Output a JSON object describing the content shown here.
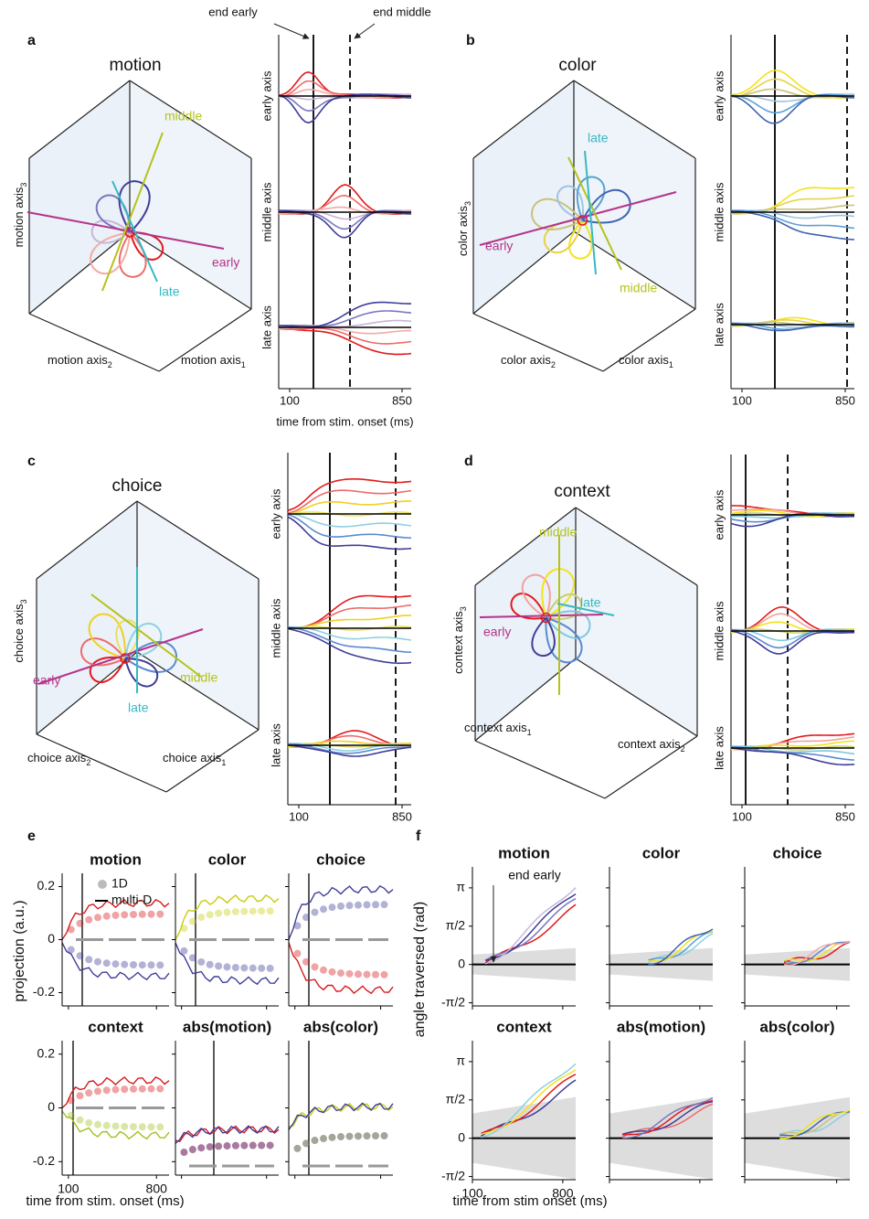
{
  "annotations": {
    "end_early": "end early",
    "end_middle": "end middle"
  },
  "panels": [
    {
      "letter": "a",
      "title": "motion",
      "axis_labels": [
        {
          "text": "motion axis",
          "sub": "2"
        },
        {
          "text": "motion axis",
          "sub": "1"
        },
        {
          "text": "motion axis",
          "sub": "3"
        }
      ],
      "traj_labels": {
        "early": "early",
        "middle": "middle",
        "late": "late"
      },
      "row_labels": [
        "early axis",
        "middle axis",
        "late axis"
      ],
      "xticks": [
        100,
        850
      ],
      "xlabel": "time from stim. onset (ms)"
    },
    {
      "letter": "b",
      "title": "color",
      "axis_labels": [
        {
          "text": "color axis",
          "sub": "2"
        },
        {
          "text": "color axis",
          "sub": "1"
        },
        {
          "text": "color axis",
          "sub": "3"
        }
      ],
      "traj_labels": {
        "early": "early",
        "middle": "middle",
        "late": "late"
      },
      "row_labels": [
        "early axis",
        "middle axis",
        "late axis"
      ],
      "xticks": [
        100,
        850
      ]
    },
    {
      "letter": "c",
      "title": "choice",
      "axis_labels": [
        {
          "text": "choice axis",
          "sub": "2"
        },
        {
          "text": "choice axis",
          "sub": "1"
        },
        {
          "text": "choice axis",
          "sub": "3"
        }
      ],
      "traj_labels": {
        "early": "early",
        "middle": "middle",
        "late": "late"
      },
      "row_labels": [
        "early axis",
        "middle axis",
        "late axis"
      ],
      "xticks": [
        100,
        850
      ]
    },
    {
      "letter": "d",
      "title": "context",
      "axis_labels": [
        {
          "text": "context axis",
          "sub": "1"
        },
        {
          "text": "context axis",
          "sub": "2"
        },
        {
          "text": "context axis",
          "sub": "3"
        }
      ],
      "traj_labels": {
        "early": "early",
        "middle": "middle",
        "late": "late"
      },
      "row_labels": [
        "early axis",
        "middle axis",
        "late axis"
      ],
      "xticks": [
        100,
        850
      ]
    }
  ],
  "panel_e": {
    "letter": "e",
    "titles": [
      "motion",
      "color",
      "choice",
      "context",
      "abs(motion)",
      "abs(color)"
    ],
    "ylabel": "projection (a.u.)",
    "xlabel": "time from stim. onset (ms)",
    "legend": [
      "1D",
      "multi-D"
    ],
    "xlim": [
      50,
      900
    ],
    "xticks": [
      100,
      800
    ],
    "ylim": [
      -0.25,
      0.25
    ],
    "yticks": [
      -0.2,
      0,
      0.2
    ]
  },
  "panel_f": {
    "letter": "f",
    "titles": [
      "motion",
      "color",
      "choice",
      "context",
      "abs(motion)",
      "abs(color)"
    ],
    "ylabel": "angle traversed (rad)",
    "xlabel": "time from stim onset (ms)",
    "annotation": "end early",
    "xlim": [
      100,
      900
    ],
    "xticks": [
      100,
      800
    ],
    "ylim": [
      -1.7,
      4.0
    ],
    "yticks": [
      {
        "value": -1.5708,
        "label": "-π/2"
      },
      0,
      {
        "value": 1.5708,
        "label": "π/2"
      },
      {
        "value": 3.1416,
        "label": "π"
      }
    ]
  }
}
